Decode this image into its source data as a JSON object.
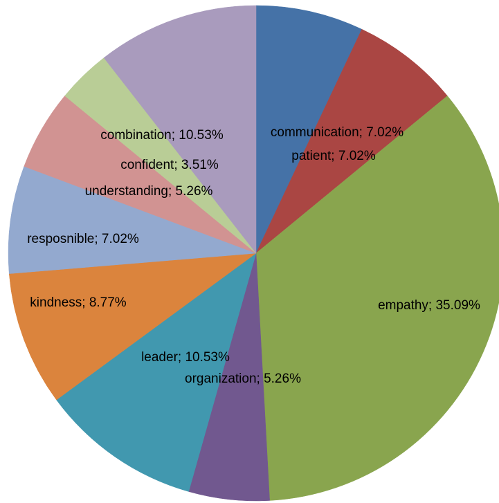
{
  "chart_data": {
    "type": "pie",
    "values": [
      7.02,
      7.02,
      35.09,
      5.26,
      10.53,
      8.77,
      7.02,
      5.26,
      3.51,
      10.53
    ],
    "value_labels": [
      "communication; 7.02%",
      "patient; 7.02%",
      "empathy; 35.09%",
      "organization; 5.26%",
      "leader; 10.53%",
      "kindness; 8.77%",
      "resposnible; 7.02%",
      "understanding; 5.26%",
      "confident; 3.51%",
      "combination; 10.53%"
    ],
    "colors": [
      "#4572a7",
      "#aa4643",
      "#89a54e",
      "#71588f",
      "#4198af",
      "#db843d",
      "#93a9cf",
      "#d19392",
      "#b9cd96",
      "#a99bbd"
    ]
  }
}
